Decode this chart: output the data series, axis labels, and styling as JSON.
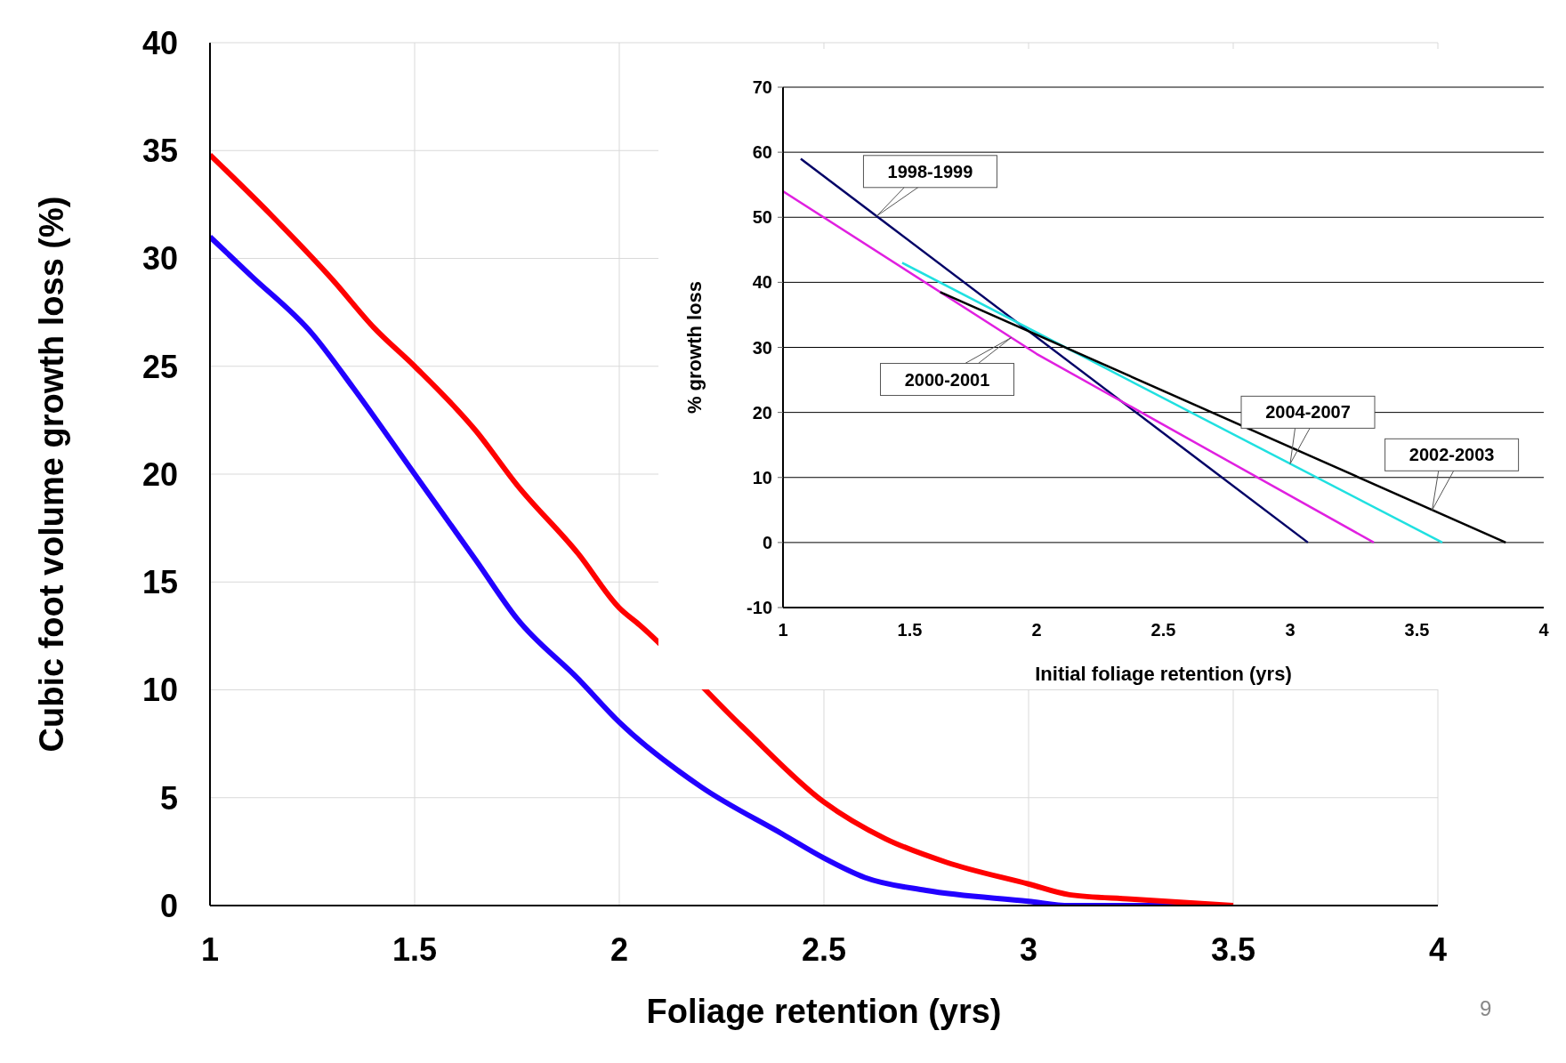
{
  "chart_data": [
    {
      "type": "line",
      "xlabel": "Foliage retention (yrs)",
      "ylabel": "Cubic foot volume growth loss (%)",
      "xlim": [
        1,
        4
      ],
      "xticks": [
        1,
        1.5,
        2,
        2.5,
        3,
        3.5,
        4
      ],
      "ylim": [
        0,
        40
      ],
      "yticks": [
        0,
        5,
        10,
        15,
        20,
        25,
        30,
        35,
        40
      ],
      "grid": true,
      "legend": false,
      "marker": "none",
      "annotations": [
        "9"
      ],
      "series": [
        {
          "color": "#2200ff",
          "x": [
            1,
            1.1,
            1.25,
            1.35,
            1.5,
            1.65,
            1.75,
            1.9,
            2,
            2.2,
            2.4,
            2.5,
            2.6,
            2.75,
            3,
            3.1,
            3.5
          ],
          "values": [
            31,
            29.2,
            26.5,
            24,
            20,
            16,
            13.3,
            10.5,
            8.5,
            5.5,
            3.3,
            2.2,
            1.3,
            0.7,
            0.2,
            0,
            0
          ]
        },
        {
          "color": "#ff0000",
          "x": [
            1,
            1.15,
            1.3,
            1.4,
            1.5,
            1.65,
            1.75,
            1.9,
            2,
            2.05,
            2.3,
            2.5,
            2.65,
            2.8,
            3,
            3.1,
            3.25,
            3.5
          ],
          "values": [
            34.8,
            32,
            29,
            26.8,
            25,
            22,
            19.5,
            16.3,
            13.8,
            13,
            8.3,
            4.8,
            3.1,
            2,
            1,
            0.5,
            0.3,
            0
          ]
        }
      ]
    },
    {
      "type": "line",
      "xlabel": "Initial foliage retention (yrs)",
      "ylabel": "% growth loss",
      "xlim": [
        1,
        4
      ],
      "xticks": [
        1,
        1.5,
        2,
        2.5,
        3,
        3.5,
        4
      ],
      "ylim": [
        -10,
        70
      ],
      "yticks": [
        -10,
        0,
        10,
        20,
        30,
        40,
        50,
        60,
        70
      ],
      "grid": "y",
      "legend": false,
      "marker": "none",
      "annotations": [
        {
          "text": "1998-1999",
          "x": 1.37,
          "y": 50.2
        },
        {
          "text": "2000-2001",
          "x": 1.9,
          "y": 31.5
        },
        {
          "text": "2004-2007",
          "x": 3.0,
          "y": 12.1
        },
        {
          "text": "2002-2003",
          "x": 3.56,
          "y": 5
        }
      ],
      "series": [
        {
          "color": "#000066",
          "x": [
            1.07,
            3.07
          ],
          "values": [
            59,
            0
          ]
        },
        {
          "color": "#e020e0",
          "x": [
            1,
            2,
            3.33
          ],
          "values": [
            54,
            29,
            0
          ]
        },
        {
          "color": "#20e0e0",
          "x": [
            1.47,
            3.6
          ],
          "values": [
            43,
            0
          ]
        },
        {
          "color": "#000000",
          "x": [
            1.62,
            3.85
          ],
          "values": [
            38.5,
            0
          ]
        }
      ]
    }
  ]
}
